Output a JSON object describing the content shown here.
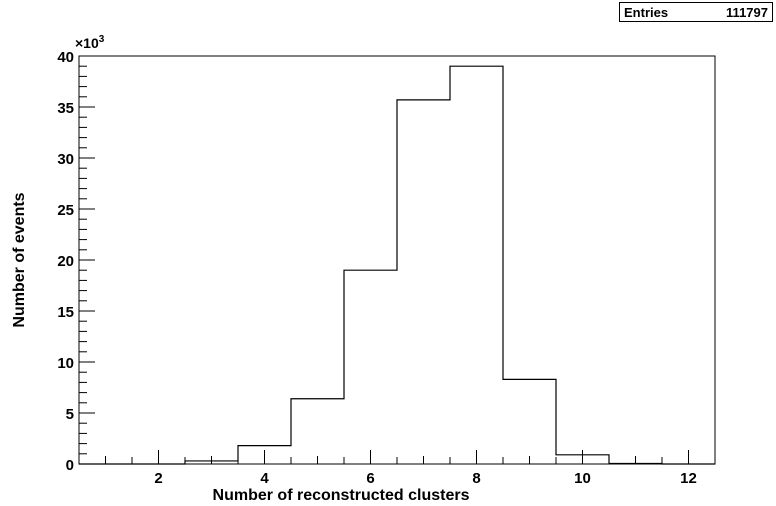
{
  "stats": {
    "label": "Entries",
    "value": "111797"
  },
  "chart_data": {
    "type": "histogram",
    "xlabel": "Number of reconstructed clusters",
    "ylabel": "Number of events",
    "y_multiplier_label": "×10³",
    "y_scale": 1000,
    "xlim": [
      0.5,
      12.5
    ],
    "ylim": [
      0,
      40
    ],
    "x_ticks": [
      2,
      4,
      6,
      8,
      10,
      12
    ],
    "y_ticks": [
      0,
      5,
      10,
      15,
      20,
      25,
      30,
      35,
      40
    ],
    "grid": false,
    "bins": [
      {
        "x_low": 0.5,
        "x_high": 1.5,
        "value": 0
      },
      {
        "x_low": 1.5,
        "x_high": 2.5,
        "value": 0
      },
      {
        "x_low": 2.5,
        "x_high": 3.5,
        "value": 0.3
      },
      {
        "x_low": 3.5,
        "x_high": 4.5,
        "value": 1.8
      },
      {
        "x_low": 4.5,
        "x_high": 5.5,
        "value": 6.4
      },
      {
        "x_low": 5.5,
        "x_high": 6.5,
        "value": 19.0
      },
      {
        "x_low": 6.5,
        "x_high": 7.5,
        "value": 35.7
      },
      {
        "x_low": 7.5,
        "x_high": 8.5,
        "value": 39.0
      },
      {
        "x_low": 8.5,
        "x_high": 9.5,
        "value": 8.3
      },
      {
        "x_low": 9.5,
        "x_high": 10.5,
        "value": 0.9
      },
      {
        "x_low": 10.5,
        "x_high": 11.5,
        "value": 0.05
      },
      {
        "x_low": 11.5,
        "x_high": 12.5,
        "value": 0
      }
    ]
  }
}
